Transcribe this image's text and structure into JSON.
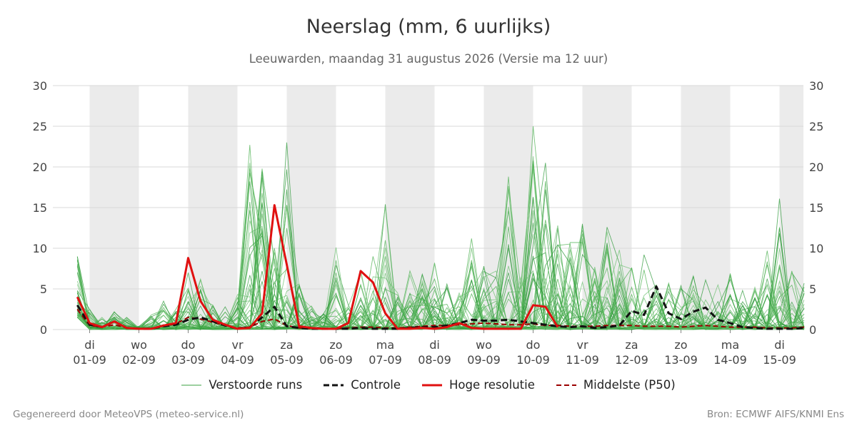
{
  "header": {
    "title": "Neerslag (mm, 6 uurlijks)",
    "subtitle": "Leeuwarden, maandag 31 augustus 2026 (Versie ma 12 uur)"
  },
  "footer": {
    "left": "Gegenereerd door MeteoVPS (meteo-service.nl)",
    "right": "Bron: ECMWF AIFS/KNMI Ens"
  },
  "colors": {
    "ensemble": "#3aa040",
    "control": "#111111",
    "hires": "#e01010",
    "median": "#9b0000",
    "weekend_band": "#ebebeb",
    "grid": "#d9d9d9"
  },
  "chart_data": {
    "type": "line",
    "title": "Neerslag (mm, 6 uurlijks)",
    "subtitle": "Leeuwarden, maandag 31 augustus 2026 (Versie ma 12 uur)",
    "xlabel": "",
    "ylabel": "",
    "ylim": [
      0,
      30
    ],
    "yticks": [
      0,
      5,
      10,
      15,
      20,
      25,
      30
    ],
    "xlim": [
      -0.25,
      14.5
    ],
    "x_ticks": [
      {
        "x": 0,
        "day": "di",
        "date": "01-09"
      },
      {
        "x": 1,
        "day": "wo",
        "date": "02-09"
      },
      {
        "x": 2,
        "day": "do",
        "date": "03-09"
      },
      {
        "x": 3,
        "day": "vr",
        "date": "04-09"
      },
      {
        "x": 4,
        "day": "za",
        "date": "05-09"
      },
      {
        "x": 5,
        "day": "zo",
        "date": "06-09"
      },
      {
        "x": 6,
        "day": "ma",
        "date": "07-09"
      },
      {
        "x": 7,
        "day": "di",
        "date": "08-09"
      },
      {
        "x": 8,
        "day": "wo",
        "date": "09-09"
      },
      {
        "x": 9,
        "day": "do",
        "date": "10-09"
      },
      {
        "x": 10,
        "day": "vr",
        "date": "11-09"
      },
      {
        "x": 11,
        "day": "za",
        "date": "12-09"
      },
      {
        "x": 12,
        "day": "zo",
        "date": "13-09"
      },
      {
        "x": 13,
        "day": "ma",
        "date": "14-09"
      },
      {
        "x": 14,
        "day": "di",
        "date": "15-09"
      }
    ],
    "shaded_days": [
      [
        0,
        1
      ],
      [
        2,
        3
      ],
      [
        4,
        5
      ],
      [
        6,
        7
      ],
      [
        8,
        9
      ],
      [
        10,
        11
      ],
      [
        12,
        13
      ],
      [
        14,
        15
      ]
    ],
    "grid": true,
    "legend_position": "bottom",
    "legend": [
      "Verstoorde runs",
      "Controle",
      "Hoge resolutie",
      "Middelste (P50)"
    ],
    "series": [
      {
        "name": "Hoge resolutie",
        "style": "solid-red",
        "x": [
          -0.25,
          0,
          0.25,
          0.5,
          0.75,
          1,
          1.25,
          1.5,
          1.75,
          2,
          2.25,
          2.5,
          2.75,
          3,
          3.25,
          3.5,
          3.75,
          4,
          4.25,
          4.5,
          4.75,
          5,
          5.25,
          5.5,
          5.75,
          6,
          6.25,
          6.5,
          6.75,
          7,
          7.25,
          7.5,
          7.75,
          8,
          8.25,
          8.5,
          8.75,
          9,
          9.25,
          9.5
        ],
        "y": [
          4,
          0.8,
          0.3,
          1,
          0.2,
          0.1,
          0.1,
          0.5,
          0.8,
          8.8,
          3.5,
          1.2,
          0.6,
          0.1,
          0.2,
          2.0,
          15.3,
          8.0,
          0.4,
          0.2,
          0.1,
          0.1,
          0.8,
          7.2,
          5.8,
          2.0,
          0.1,
          0.1,
          0.2,
          0.1,
          0.3,
          0.8,
          0.2,
          0.1,
          0.1,
          0.1,
          0.1,
          3.0,
          2.8,
          0.3
        ]
      },
      {
        "name": "Controle",
        "style": "dashed-black",
        "x": [
          -0.25,
          0,
          0.25,
          0.5,
          0.75,
          1,
          1.25,
          1.5,
          1.75,
          2,
          2.25,
          2.5,
          2.75,
          3,
          3.25,
          3.5,
          3.75,
          4,
          4.25,
          4.5,
          4.75,
          5,
          5.25,
          5.5,
          5.75,
          6,
          6.25,
          6.5,
          6.75,
          7,
          7.25,
          7.5,
          7.75,
          8,
          8.25,
          8.5,
          8.75,
          9,
          9.25,
          9.5,
          9.75,
          10,
          10.25,
          10.5,
          10.75,
          11,
          11.25,
          11.5,
          11.75,
          12,
          12.25,
          12.5,
          12.75,
          13,
          13.25,
          13.5,
          13.75,
          14,
          14.25,
          14.5
        ],
        "y": [
          3,
          0.6,
          0.3,
          1,
          0.2,
          0.1,
          0.1,
          0.4,
          0.6,
          1.2,
          1.5,
          1.0,
          0.5,
          0.1,
          0.3,
          1.5,
          2.8,
          0.4,
          0.2,
          0.1,
          0.1,
          0.1,
          0.1,
          0.2,
          0.1,
          0.1,
          0.1,
          0.2,
          0.3,
          0.3,
          0.5,
          0.8,
          1.2,
          1.1,
          1.1,
          1.2,
          1.0,
          0.8,
          0.6,
          0.4,
          0.3,
          0.4,
          0.2,
          0.3,
          0.5,
          2.3,
          1.8,
          5.3,
          2.0,
          1.3,
          2.2,
          2.7,
          1.2,
          0.8,
          0.3,
          0.2,
          0.1,
          0.1,
          0.1,
          0.2
        ]
      },
      {
        "name": "Middelste (P50)",
        "style": "dashed-darkred",
        "x": [
          -0.25,
          0,
          0.25,
          0.5,
          0.75,
          1,
          1.25,
          1.5,
          1.75,
          2,
          2.25,
          2.5,
          2.75,
          3,
          3.25,
          3.5,
          3.75,
          4,
          4.25,
          4.5,
          4.75,
          5,
          5.25,
          5.5,
          5.75,
          6,
          6.25,
          6.5,
          6.75,
          7,
          7.25,
          7.5,
          7.75,
          8,
          8.25,
          8.5,
          8.75,
          9,
          9.25,
          9.5,
          9.75,
          10,
          10.25,
          10.5,
          10.75,
          11,
          11.25,
          11.5,
          11.75,
          12,
          12.25,
          12.5,
          12.75,
          13,
          13.25,
          13.5,
          13.75,
          14,
          14.25,
          14.5
        ],
        "y": [
          2.5,
          0.5,
          0.3,
          0.6,
          0.2,
          0.1,
          0.1,
          0.4,
          0.7,
          1.5,
          1.3,
          0.9,
          0.5,
          0.2,
          0.3,
          1.0,
          1.3,
          0.5,
          0.2,
          0.1,
          0.1,
          0.1,
          0.2,
          0.3,
          0.3,
          0.2,
          0.2,
          0.3,
          0.4,
          0.5,
          0.5,
          0.6,
          0.7,
          0.8,
          0.7,
          0.6,
          0.6,
          0.7,
          0.5,
          0.5,
          0.4,
          0.4,
          0.4,
          0.5,
          0.5,
          0.5,
          0.4,
          0.4,
          0.4,
          0.3,
          0.4,
          0.5,
          0.4,
          0.3,
          0.3,
          0.3,
          0.2,
          0.2,
          0.2,
          0.3
        ]
      }
    ],
    "ensemble": {
      "name": "Verstoorde runs",
      "members": 50,
      "x_start": -0.25,
      "x_step": 0.25,
      "envelope_max": [
        9,
        2.5,
        1.5,
        2.2,
        1.5,
        0.3,
        1.8,
        3.5,
        2.5,
        7.0,
        6.2,
        3.0,
        2.8,
        4.3,
        22.7,
        19.8,
        10.0,
        23.0,
        5.6,
        2.9,
        2.0,
        10.1,
        3.0,
        7.3,
        9.0,
        15.4,
        4.5,
        7.2,
        6.8,
        8.2,
        5.6,
        4.5,
        11.2,
        7.8,
        7.2,
        18.8,
        6.4,
        25.0,
        20.5,
        12.8,
        10.7,
        13.0,
        7.7,
        12.6,
        9.8,
        7.6,
        9.2,
        5.5,
        5.7,
        5.4,
        6.6,
        6.1,
        5.5,
        6.9,
        4.8,
        5.2,
        9.7,
        16.1,
        7.2,
        5.7
      ]
    }
  }
}
